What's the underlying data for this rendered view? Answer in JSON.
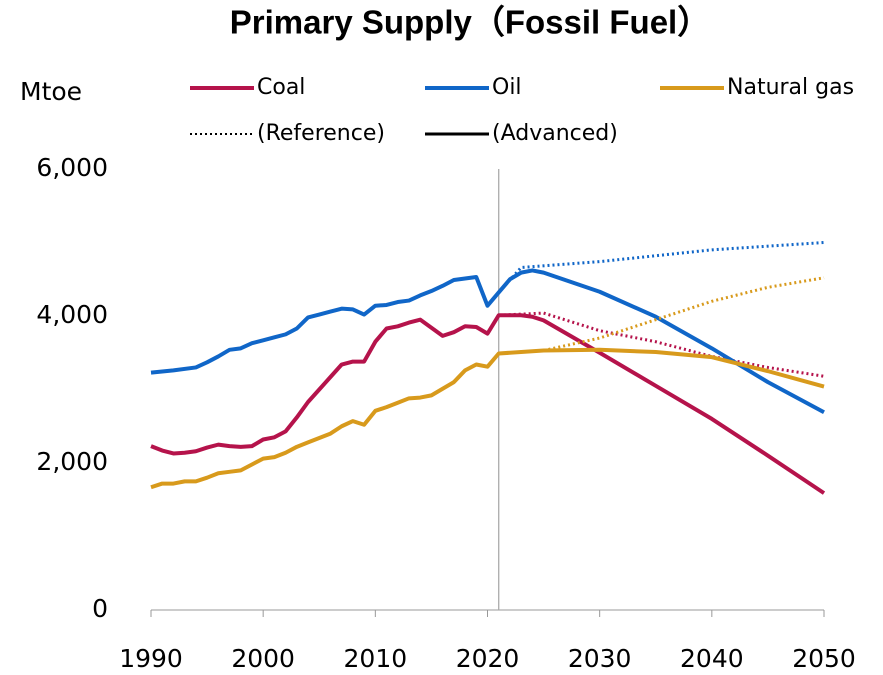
{
  "chart_data": {
    "type": "line",
    "title": "Primary Supply（Fossil Fuel）",
    "y_label": "Mtoe",
    "xlim": [
      1990,
      2050
    ],
    "xticks": [
      1990,
      2000,
      2010,
      2020,
      2030,
      2040,
      2050
    ],
    "ylim": [
      0,
      6000
    ],
    "yticks": [
      0,
      {
        "value": 2000,
        "label": "2,000"
      },
      {
        "value": 4000,
        "label": "4,000"
      },
      {
        "value": 6000,
        "label": "6,000"
      }
    ],
    "divider_x": 2021,
    "line_styles": [
      {
        "name": "(Reference)",
        "dash": "dotted"
      },
      {
        "name": "(Advanced)",
        "dash": "solid"
      }
    ],
    "series": [
      {
        "name": "Coal",
        "color": "#b5134b",
        "x": [
          1990,
          1991,
          1992,
          1993,
          1994,
          1995,
          1996,
          1997,
          1998,
          1999,
          2000,
          2001,
          2002,
          2003,
          2004,
          2005,
          2006,
          2007,
          2008,
          2009,
          2010,
          2011,
          2012,
          2013,
          2014,
          2015,
          2016,
          2017,
          2018,
          2019,
          2020,
          2021,
          2022,
          2023,
          2024,
          2025,
          2030,
          2035,
          2040,
          2045,
          2050
        ],
        "values": [
          2230,
          2170,
          2130,
          2140,
          2160,
          2210,
          2250,
          2230,
          2220,
          2230,
          2320,
          2350,
          2430,
          2620,
          2830,
          3000,
          3170,
          3340,
          3380,
          3380,
          3650,
          3830,
          3860,
          3910,
          3950,
          3840,
          3730,
          3780,
          3860,
          3850,
          3760,
          4010,
          4010,
          4010,
          3990,
          3940,
          3500,
          3050,
          2600,
          2100,
          1590
        ],
        "reference": {
          "x": [
            2021,
            2025,
            2030,
            2035,
            2040,
            2045,
            2050
          ],
          "values": [
            4010,
            4040,
            3800,
            3650,
            3450,
            3300,
            3180
          ]
        }
      },
      {
        "name": "Oil",
        "color": "#1066c8",
        "x": [
          1990,
          1992,
          1994,
          1995,
          1996,
          1997,
          1998,
          1999,
          2000,
          2001,
          2002,
          2003,
          2004,
          2005,
          2006,
          2007,
          2008,
          2009,
          2010,
          2011,
          2012,
          2013,
          2014,
          2015,
          2016,
          2017,
          2018,
          2019,
          2020,
          2021,
          2022,
          2023,
          2024,
          2025,
          2030,
          2035,
          2040,
          2045,
          2050
        ],
        "values": [
          3230,
          3260,
          3300,
          3370,
          3450,
          3540,
          3560,
          3630,
          3670,
          3710,
          3750,
          3830,
          3980,
          4020,
          4060,
          4100,
          4090,
          4020,
          4140,
          4150,
          4190,
          4210,
          4280,
          4340,
          4410,
          4490,
          4510,
          4530,
          4140,
          4320,
          4500,
          4590,
          4620,
          4590,
          4330,
          3990,
          3560,
          3100,
          2690
        ],
        "reference": {
          "x": [
            2021,
            2023,
            2030,
            2040,
            2050
          ],
          "values": [
            4320,
            4660,
            4740,
            4900,
            5000
          ]
        }
      },
      {
        "name": "Natural gas",
        "color": "#d89a1c",
        "x": [
          1990,
          1991,
          1992,
          1993,
          1994,
          1995,
          1996,
          1997,
          1998,
          1999,
          2000,
          2001,
          2002,
          2003,
          2004,
          2005,
          2006,
          2007,
          2008,
          2009,
          2010,
          2011,
          2012,
          2013,
          2014,
          2015,
          2016,
          2017,
          2018,
          2019,
          2020,
          2021,
          2025,
          2030,
          2035,
          2040,
          2045,
          2050
        ],
        "values": [
          1670,
          1720,
          1720,
          1750,
          1750,
          1800,
          1860,
          1880,
          1900,
          1980,
          2060,
          2080,
          2140,
          2220,
          2280,
          2340,
          2400,
          2500,
          2570,
          2520,
          2710,
          2760,
          2820,
          2880,
          2890,
          2920,
          3010,
          3100,
          3260,
          3340,
          3310,
          3490,
          3530,
          3540,
          3510,
          3440,
          3250,
          3040
        ],
        "reference": {
          "x": [
            2021,
            2025,
            2030,
            2035,
            2040,
            2045,
            2050
          ],
          "values": [
            3490,
            3530,
            3700,
            3950,
            4200,
            4390,
            4520
          ]
        }
      }
    ]
  }
}
